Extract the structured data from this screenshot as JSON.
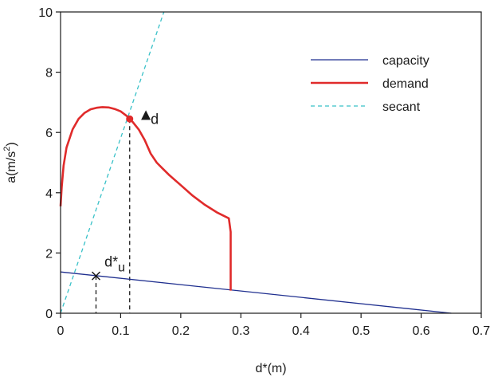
{
  "chart_data": {
    "type": "line",
    "xlabel": "d*(m)",
    "ylabel_main": "a(m/s",
    "ylabel_sup": "2",
    "ylabel_close": ")",
    "xlim": [
      0,
      0.7
    ],
    "ylim": [
      0,
      10
    ],
    "x_ticks": [
      "0",
      "0.1",
      "0.2",
      "0.3",
      "0.4",
      "0.5",
      "0.6",
      "0.7"
    ],
    "y_ticks": [
      "0",
      "2",
      "4",
      "6",
      "8",
      "10"
    ],
    "grid": false,
    "legend_position": "top-right",
    "series": [
      {
        "name": "capacity",
        "color": "#1f2f8f",
        "style": "solid",
        "x": [
          0.0,
          0.65
        ],
        "y": [
          1.37,
          0.0
        ]
      },
      {
        "name": "demand",
        "color": "#e02b2b",
        "style": "solid",
        "x": [
          0.0,
          0.002,
          0.005,
          0.01,
          0.02,
          0.03,
          0.04,
          0.05,
          0.06,
          0.07,
          0.08,
          0.09,
          0.1,
          0.11,
          0.115,
          0.12,
          0.13,
          0.14,
          0.15,
          0.16,
          0.17,
          0.18,
          0.2,
          0.22,
          0.24,
          0.26,
          0.28,
          0.283,
          0.283
        ],
        "y": [
          3.55,
          4.2,
          4.9,
          5.5,
          6.1,
          6.45,
          6.65,
          6.77,
          6.82,
          6.84,
          6.83,
          6.78,
          6.7,
          6.55,
          6.45,
          6.35,
          6.1,
          5.75,
          5.3,
          5.0,
          4.8,
          4.6,
          4.25,
          3.9,
          3.6,
          3.35,
          3.15,
          2.7,
          0.75
        ]
      },
      {
        "name": "secant",
        "color": "#38c1c8",
        "style": "dashed",
        "x": [
          0.0,
          0.172
        ],
        "y": [
          0.0,
          10.0
        ]
      }
    ],
    "points": [
      {
        "name": "intersection",
        "x": 0.115,
        "y": 6.45,
        "marker": "dot",
        "color": "#e02b2b"
      },
      {
        "name": "d*u",
        "x": 0.059,
        "y": 1.24,
        "marker": "x",
        "color": "#1a1a1a"
      }
    ],
    "drop_lines": [
      {
        "x": 0.115,
        "y_top": 6.45
      },
      {
        "x": 0.059,
        "y_top": 1.24
      }
    ],
    "annotations": {
      "d_marker": {
        "x": 0.142,
        "y": 6.55,
        "text": "d"
      },
      "du_label": {
        "x": 0.073,
        "y": 1.55,
        "base": "d*",
        "sub": "u"
      }
    }
  }
}
